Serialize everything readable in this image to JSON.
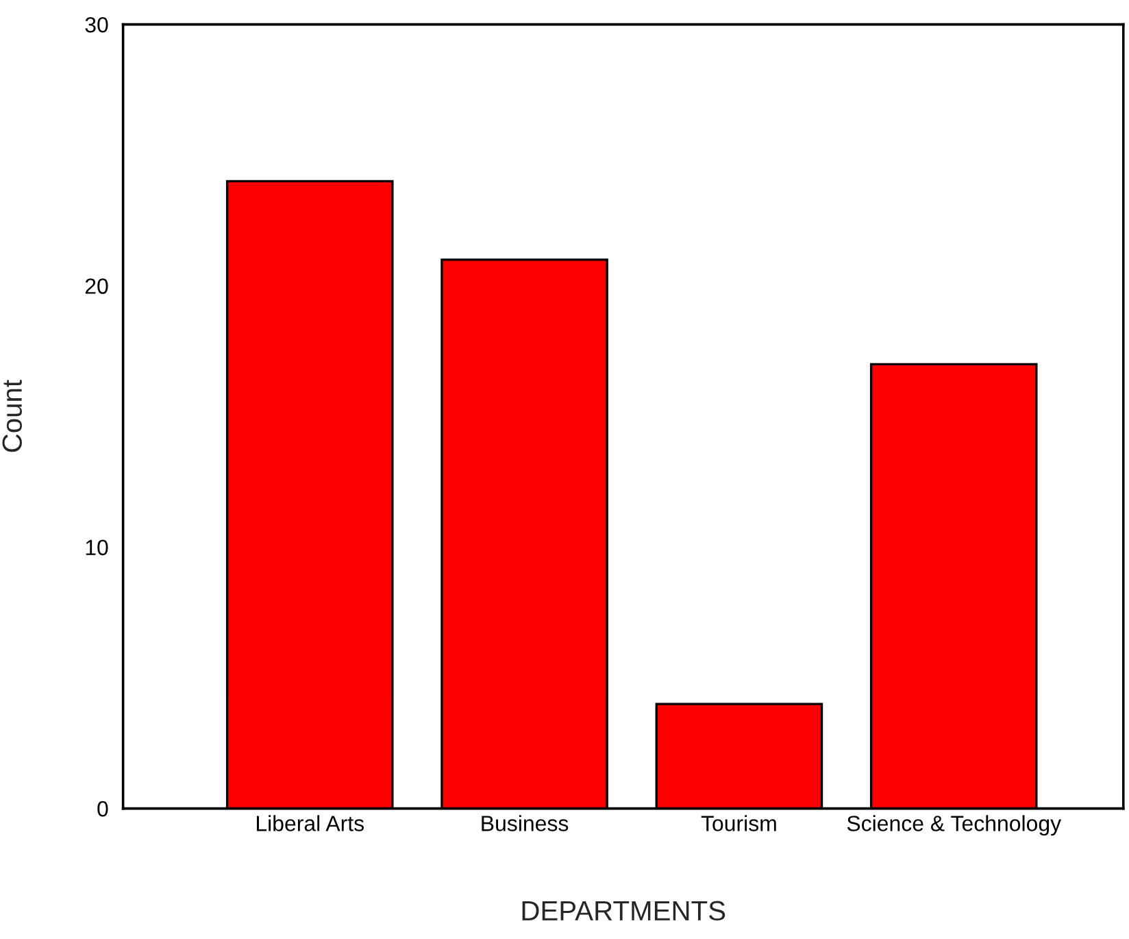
{
  "chart_data": {
    "type": "bar",
    "xlabel": "DEPARTMENTS",
    "ylabel": "Count",
    "categories": [
      "Liberal Arts",
      "Business",
      "Tourism",
      "Science & Technology"
    ],
    "values": [
      24,
      21,
      4,
      17
    ],
    "color": "#ff0000",
    "ylim": [
      0,
      30
    ],
    "yticks": [
      0,
      10,
      20,
      30
    ],
    "grid": false,
    "legend": false
  }
}
